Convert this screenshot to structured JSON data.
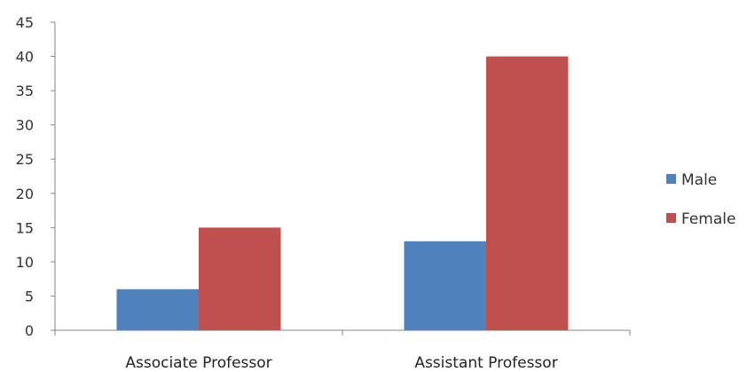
{
  "chart_data": {
    "type": "bar",
    "categories": [
      "Associate Professor",
      "Assistant Professor"
    ],
    "series": [
      {
        "name": "Male",
        "values": [
          6,
          13
        ],
        "color": "#4F81BD"
      },
      {
        "name": "Female",
        "values": [
          15,
          40
        ],
        "color": "#C0504D"
      }
    ],
    "ylim": [
      0,
      45
    ],
    "yticks": [
      0,
      5,
      10,
      15,
      20,
      25,
      30,
      35,
      40,
      45
    ],
    "grid": false,
    "legend": "right",
    "title": "",
    "xlabel": "",
    "ylabel": ""
  }
}
